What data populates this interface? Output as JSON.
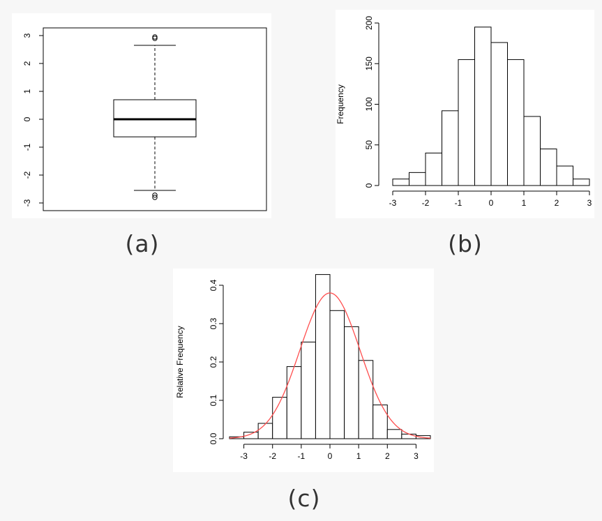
{
  "captions": {
    "a": "(a)",
    "b": "(b)",
    "c": "(c)"
  },
  "colors": {
    "normal_curve": "#ff4d4d",
    "stroke": "#000000",
    "panel_bg": "#ffffff",
    "page_bg": "#f7f7f7"
  },
  "chart_data": [
    {
      "type": "boxplot",
      "ylim": [
        -3,
        3
      ],
      "yticks": [
        -3,
        -2,
        -1,
        0,
        1,
        2,
        3
      ],
      "median": 0.0,
      "q1": -0.63,
      "q3": 0.7,
      "whisker_low": -2.55,
      "whisker_high": 2.65,
      "outliers": [
        2.9,
        2.95,
        -2.72,
        -2.8
      ],
      "xlabel": "",
      "ylabel": ""
    },
    {
      "type": "bar",
      "title": "",
      "xlabel": "",
      "ylabel": "Frequency",
      "xlim": [
        -3,
        3
      ],
      "ylim": [
        0,
        200
      ],
      "xticks": [
        -3,
        -2,
        -1,
        0,
        1,
        2,
        3
      ],
      "yticks": [
        0,
        50,
        100,
        150,
        200
      ],
      "bin_edges": [
        -3,
        -2.5,
        -2,
        -1.5,
        -1,
        -0.5,
        0,
        0.5,
        1,
        1.5,
        2,
        2.5,
        3
      ],
      "values": [
        8,
        16,
        40,
        92,
        155,
        195,
        176,
        155,
        85,
        45,
        24,
        8
      ]
    },
    {
      "type": "bar",
      "title": "",
      "xlabel": "",
      "ylabel": "Relative Frequency",
      "xlim": [
        -3,
        3
      ],
      "ylim": [
        0,
        0.4
      ],
      "xticks": [
        -3,
        -2,
        -1,
        0,
        1,
        2,
        3
      ],
      "yticks": [
        0.0,
        0.1,
        0.2,
        0.3,
        0.4
      ],
      "ytick_labels": [
        "0.0",
        "0.1",
        "0.2",
        "0.3",
        "0.4"
      ],
      "bin_edges": [
        -3.5,
        -3,
        -2.5,
        -2,
        -1.5,
        -1,
        -0.5,
        0,
        0.5,
        1,
        1.5,
        2,
        2.5,
        3,
        3.5
      ],
      "values": [
        0.005,
        0.017,
        0.04,
        0.108,
        0.188,
        0.252,
        0.428,
        0.334,
        0.292,
        0.204,
        0.088,
        0.024,
        0.012,
        0.008
      ],
      "overlay": {
        "type": "normal_density",
        "mean": 0,
        "sd": 1.05,
        "color": "#ff4d4d"
      }
    }
  ]
}
